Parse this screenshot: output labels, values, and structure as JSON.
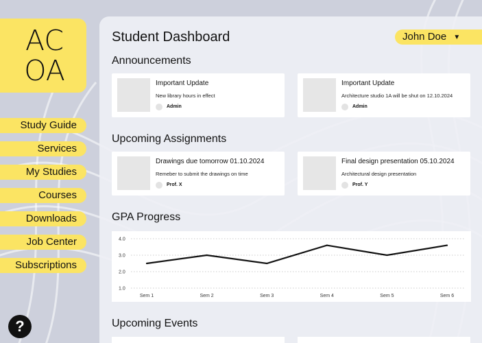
{
  "logo": {
    "line1": "AC",
    "line2": "OA"
  },
  "nav": {
    "items": [
      {
        "label": "Study Guide"
      },
      {
        "label": "Services"
      },
      {
        "label": "My Studies"
      },
      {
        "label": "Courses"
      },
      {
        "label": "Downloads"
      },
      {
        "label": "Job Center"
      },
      {
        "label": "Subscriptions"
      }
    ]
  },
  "help": {
    "label": "?"
  },
  "header": {
    "title": "Student Dashboard",
    "user": "John Doe",
    "user_caret": "▼"
  },
  "announcements": {
    "title": "Announcements",
    "items": [
      {
        "title": "Important Update",
        "desc": "New library hours in effect",
        "author": "Admin"
      },
      {
        "title": "Important Update",
        "desc": "Architecture studio 1A will be shut on 12.10.2024",
        "author": "Admin"
      }
    ]
  },
  "assignments": {
    "title": "Upcoming Assignments",
    "items": [
      {
        "title": "Drawings due tomorrow 01.10.2024",
        "desc": "Remeber to submit the drawings on time",
        "author": "Prof. X"
      },
      {
        "title": "Final design presentation 05.10.2024",
        "desc": "Architectural design presentation",
        "author": "Prof. Y"
      }
    ]
  },
  "gpa": {
    "title": "GPA Progress"
  },
  "events": {
    "title": "Upcoming Events"
  },
  "chart_data": {
    "type": "line",
    "categories": [
      "Sem 1",
      "Sem 2",
      "Sem 3",
      "Sem 4",
      "Sem 5",
      "Sem 6"
    ],
    "series": [
      {
        "values": [
          2.5,
          3.0,
          2.5,
          3.6,
          3.0,
          3.6
        ]
      }
    ],
    "yticks": [
      1.0,
      2.0,
      3.0,
      4.0
    ],
    "ytick_labels": [
      "1.0",
      "2.0",
      "3.0",
      "4.0"
    ],
    "ylim": [
      1.0,
      4.0
    ],
    "grid": true,
    "title": "",
    "xlabel": "",
    "ylabel": ""
  },
  "colors": {
    "accent": "#fbe463",
    "panel": "#eeeff5",
    "card": "#ffffff",
    "line": "#111111",
    "grid": "#bbbbbb"
  }
}
